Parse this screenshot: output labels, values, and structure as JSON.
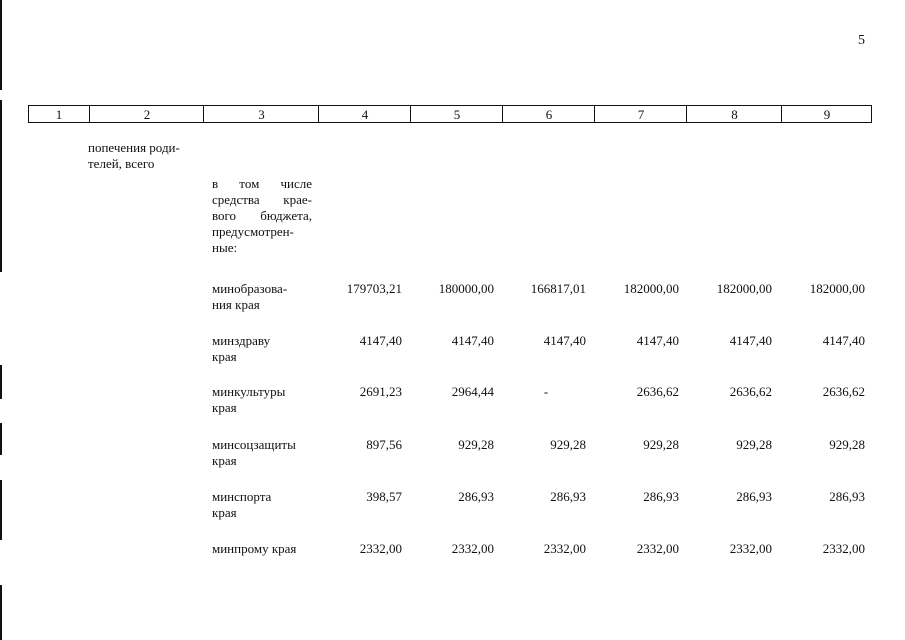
{
  "page_number": "5",
  "header_cells": [
    "1",
    "2",
    "3",
    "4",
    "5",
    "6",
    "7",
    "8",
    "9"
  ],
  "col2_text": "попечения роди-\nтелей, всего",
  "intro_text": "в том числе средства крае-вого бюджета, предусмотрен-ные:",
  "rows": [
    {
      "label": "минобразова-\nния края",
      "values": [
        "179703,21",
        "180000,00",
        "166817,01",
        "182000,00",
        "182000,00",
        "182000,00"
      ]
    },
    {
      "label": "минздраву\nкрая",
      "values": [
        "4147,40",
        "4147,40",
        "4147,40",
        "4147,40",
        "4147,40",
        "4147,40"
      ]
    },
    {
      "label": "минкультуры\nкрая",
      "values": [
        "2691,23",
        "2964,44",
        "-",
        "2636,62",
        "2636,62",
        "2636,62"
      ]
    },
    {
      "label": "минсоцзащиты\nкрая",
      "values": [
        "897,56",
        "929,28",
        "929,28",
        "929,28",
        "929,28",
        "929,28"
      ]
    },
    {
      "label": "минспорта\nкрая",
      "values": [
        "398,57",
        "286,93",
        "286,93",
        "286,93",
        "286,93",
        "286,93"
      ]
    },
    {
      "label": "минпрому края",
      "values": [
        "2332,00",
        "2332,00",
        "2332,00",
        "2332,00",
        "2332,00",
        "2332,00"
      ]
    }
  ]
}
